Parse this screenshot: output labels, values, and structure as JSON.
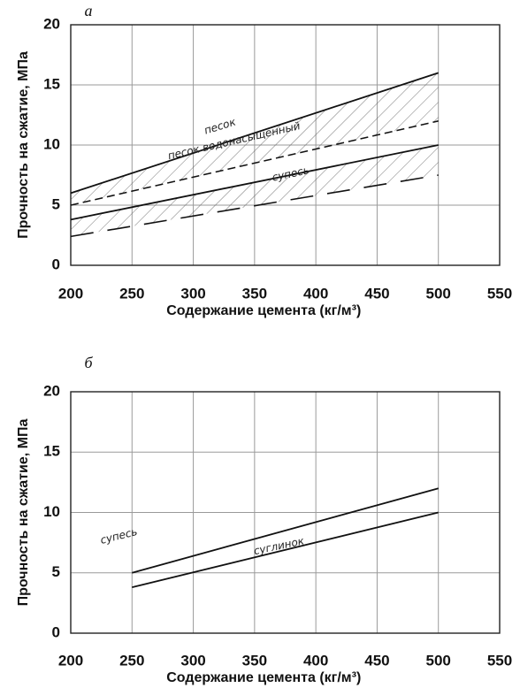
{
  "chart_data": [
    {
      "type": "line",
      "panel_label": "а",
      "xlabel": "Содержание цемента   (кг/м³)",
      "ylabel": "Прочность на сжатие, МПа",
      "xlim": [
        200,
        550
      ],
      "ylim": [
        0,
        20
      ],
      "xticks": [
        200,
        250,
        300,
        350,
        400,
        450,
        500,
        550
      ],
      "yticks": [
        0,
        5,
        10,
        15,
        20
      ],
      "grid": true,
      "series": [
        {
          "name": "песок",
          "style": "solid",
          "x": [
            200,
            500
          ],
          "y": [
            6,
            16
          ]
        },
        {
          "name": "песок водонасыщенный",
          "style": "dashed",
          "x": [
            200,
            500
          ],
          "y": [
            5,
            12
          ]
        },
        {
          "name": "супесь",
          "style": "solid",
          "x": [
            200,
            500
          ],
          "y": [
            3.8,
            10
          ]
        },
        {
          "name": "",
          "style": "long-dash",
          "x": [
            200,
            500
          ],
          "y": [
            2.4,
            7.5
          ]
        }
      ],
      "hatched_bands": [
        {
          "between": [
            "песок",
            "песок водонасыщенный"
          ]
        },
        {
          "between": [
            "супесь",
            ""
          ]
        }
      ]
    },
    {
      "type": "line",
      "panel_label": "б",
      "xlabel": "Содержание цемента   (кг/м³)",
      "ylabel": "Прочность на сжатие, МПа",
      "xlim": [
        200,
        550
      ],
      "ylim": [
        0,
        20
      ],
      "xticks": [
        200,
        250,
        300,
        350,
        400,
        450,
        500,
        550
      ],
      "yticks": [
        0,
        5,
        10,
        15,
        20
      ],
      "grid": true,
      "series": [
        {
          "name": "супесь",
          "style": "solid",
          "x": [
            250,
            500
          ],
          "y": [
            5,
            12
          ]
        },
        {
          "name": "суглинок",
          "style": "solid",
          "x": [
            250,
            500
          ],
          "y": [
            3.8,
            10
          ]
        }
      ]
    }
  ]
}
